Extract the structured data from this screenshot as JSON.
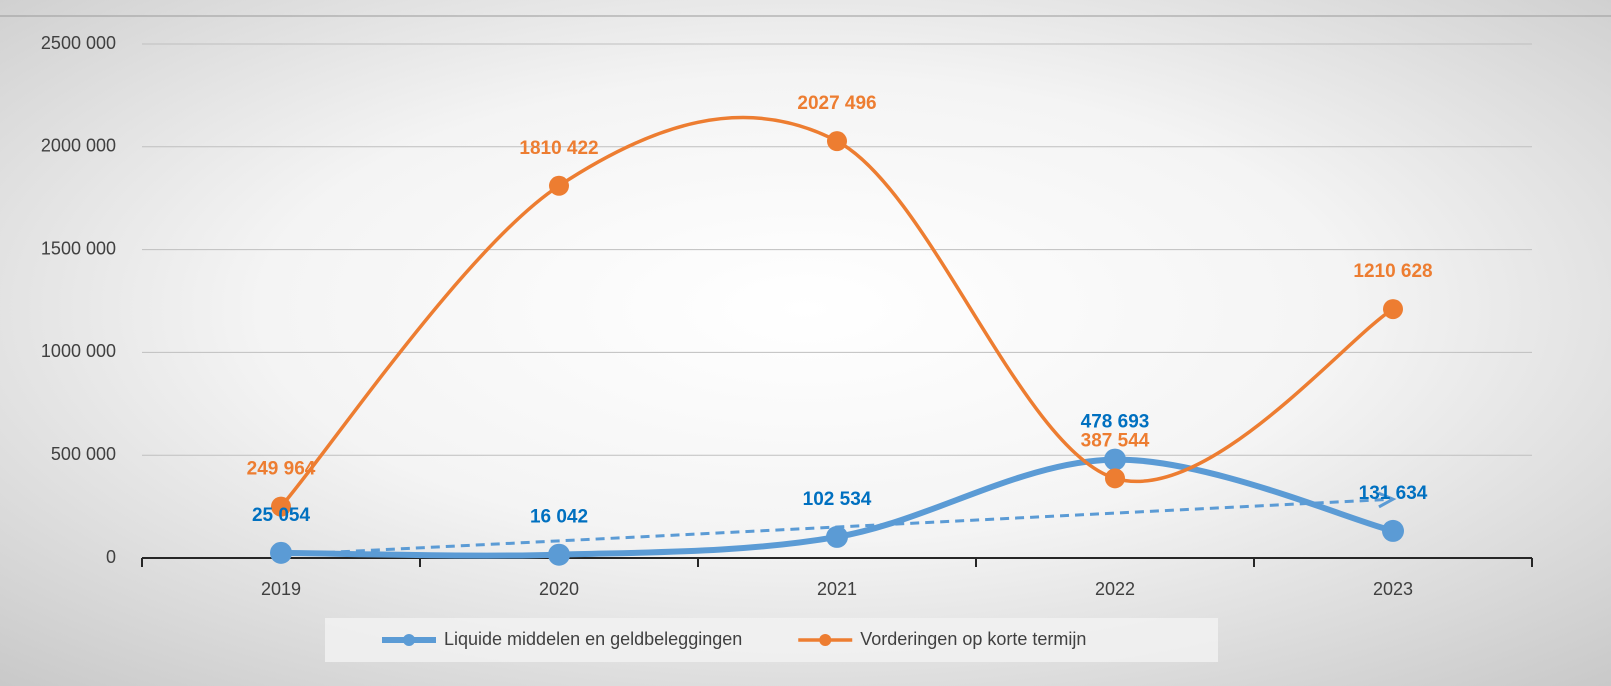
{
  "chart_data": {
    "type": "line",
    "categories": [
      "2019",
      "2020",
      "2021",
      "2022",
      "2023"
    ],
    "series": [
      {
        "name": "Liquide middelen en geldbeleggingen",
        "color": "#5b9bd5",
        "label_color": "#0070c0",
        "values": [
          25054,
          16042,
          102534,
          478693,
          131634
        ],
        "value_labels": [
          "25 054",
          "16 042",
          "102 534",
          "478 693",
          "131 634"
        ],
        "trendline": "linear"
      },
      {
        "name": "Vorderingen op korte termijn",
        "color": "#ed7d31",
        "label_color": "#ed7d31",
        "values": [
          249964,
          1810422,
          2027496,
          387544,
          1210628
        ],
        "value_labels": [
          "249 964",
          "1810 422",
          "2027 496",
          "387 544",
          "1210 628"
        ]
      }
    ],
    "ylim": [
      0,
      2500000
    ],
    "yticks": [
      0,
      {
        "value": 500000,
        "label": "500 000"
      },
      {
        "value": 1000000,
        "label": "1000 000"
      },
      {
        "value": 1500000,
        "label": "1500 000"
      },
      {
        "value": 2000000,
        "label": "2000 000"
      },
      {
        "value": 2500000,
        "label": "2500 000"
      }
    ],
    "grid": true,
    "smooth": true,
    "legend": "bottom"
  }
}
